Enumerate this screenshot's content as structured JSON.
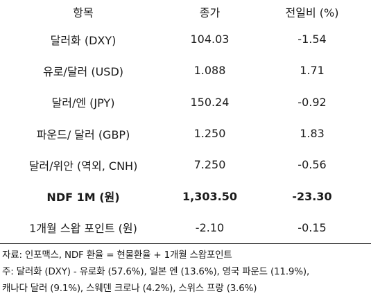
{
  "table": {
    "headers": {
      "item": "항목",
      "close": "종가",
      "change": "전일비 (%)"
    },
    "rows": [
      {
        "item": "달러화 (DXY)",
        "close": "104.03",
        "change": "-1.54",
        "bold": false
      },
      {
        "item": "유로/달러 (USD)",
        "close": "1.088",
        "change": "1.71",
        "bold": false
      },
      {
        "item": "달러/엔 (JPY)",
        "close": "150.24",
        "change": "-0.92",
        "bold": false
      },
      {
        "item": "파운드/ 달러 (GBP)",
        "close": "1.250",
        "change": "1.83",
        "bold": false
      },
      {
        "item": "달러/위안 (역외, CNH)",
        "close": "7.250",
        "change": "-0.56",
        "bold": false
      },
      {
        "item": "NDF 1M (원)",
        "close": "1,303.50",
        "change": "-23.30",
        "bold": true
      },
      {
        "item": "1개월 스왑 포인트 (원)",
        "close": "-2.10",
        "change": "-0.15",
        "bold": false
      }
    ]
  },
  "footnotes": {
    "source": "자료: 인포맥스, NDF 환율 = 현물환율 + 1개월 스왑포인트",
    "note_line1": "주: 달러화 (DXY) - 유로화 (57.6%), 일본 엔 (13.6%), 영국 파운드 (11.9%),",
    "note_line2": "캐나다 달러 (9.1%), 스웨덴 크로나 (4.2%), 스위스 프랑 (3.6%)"
  }
}
